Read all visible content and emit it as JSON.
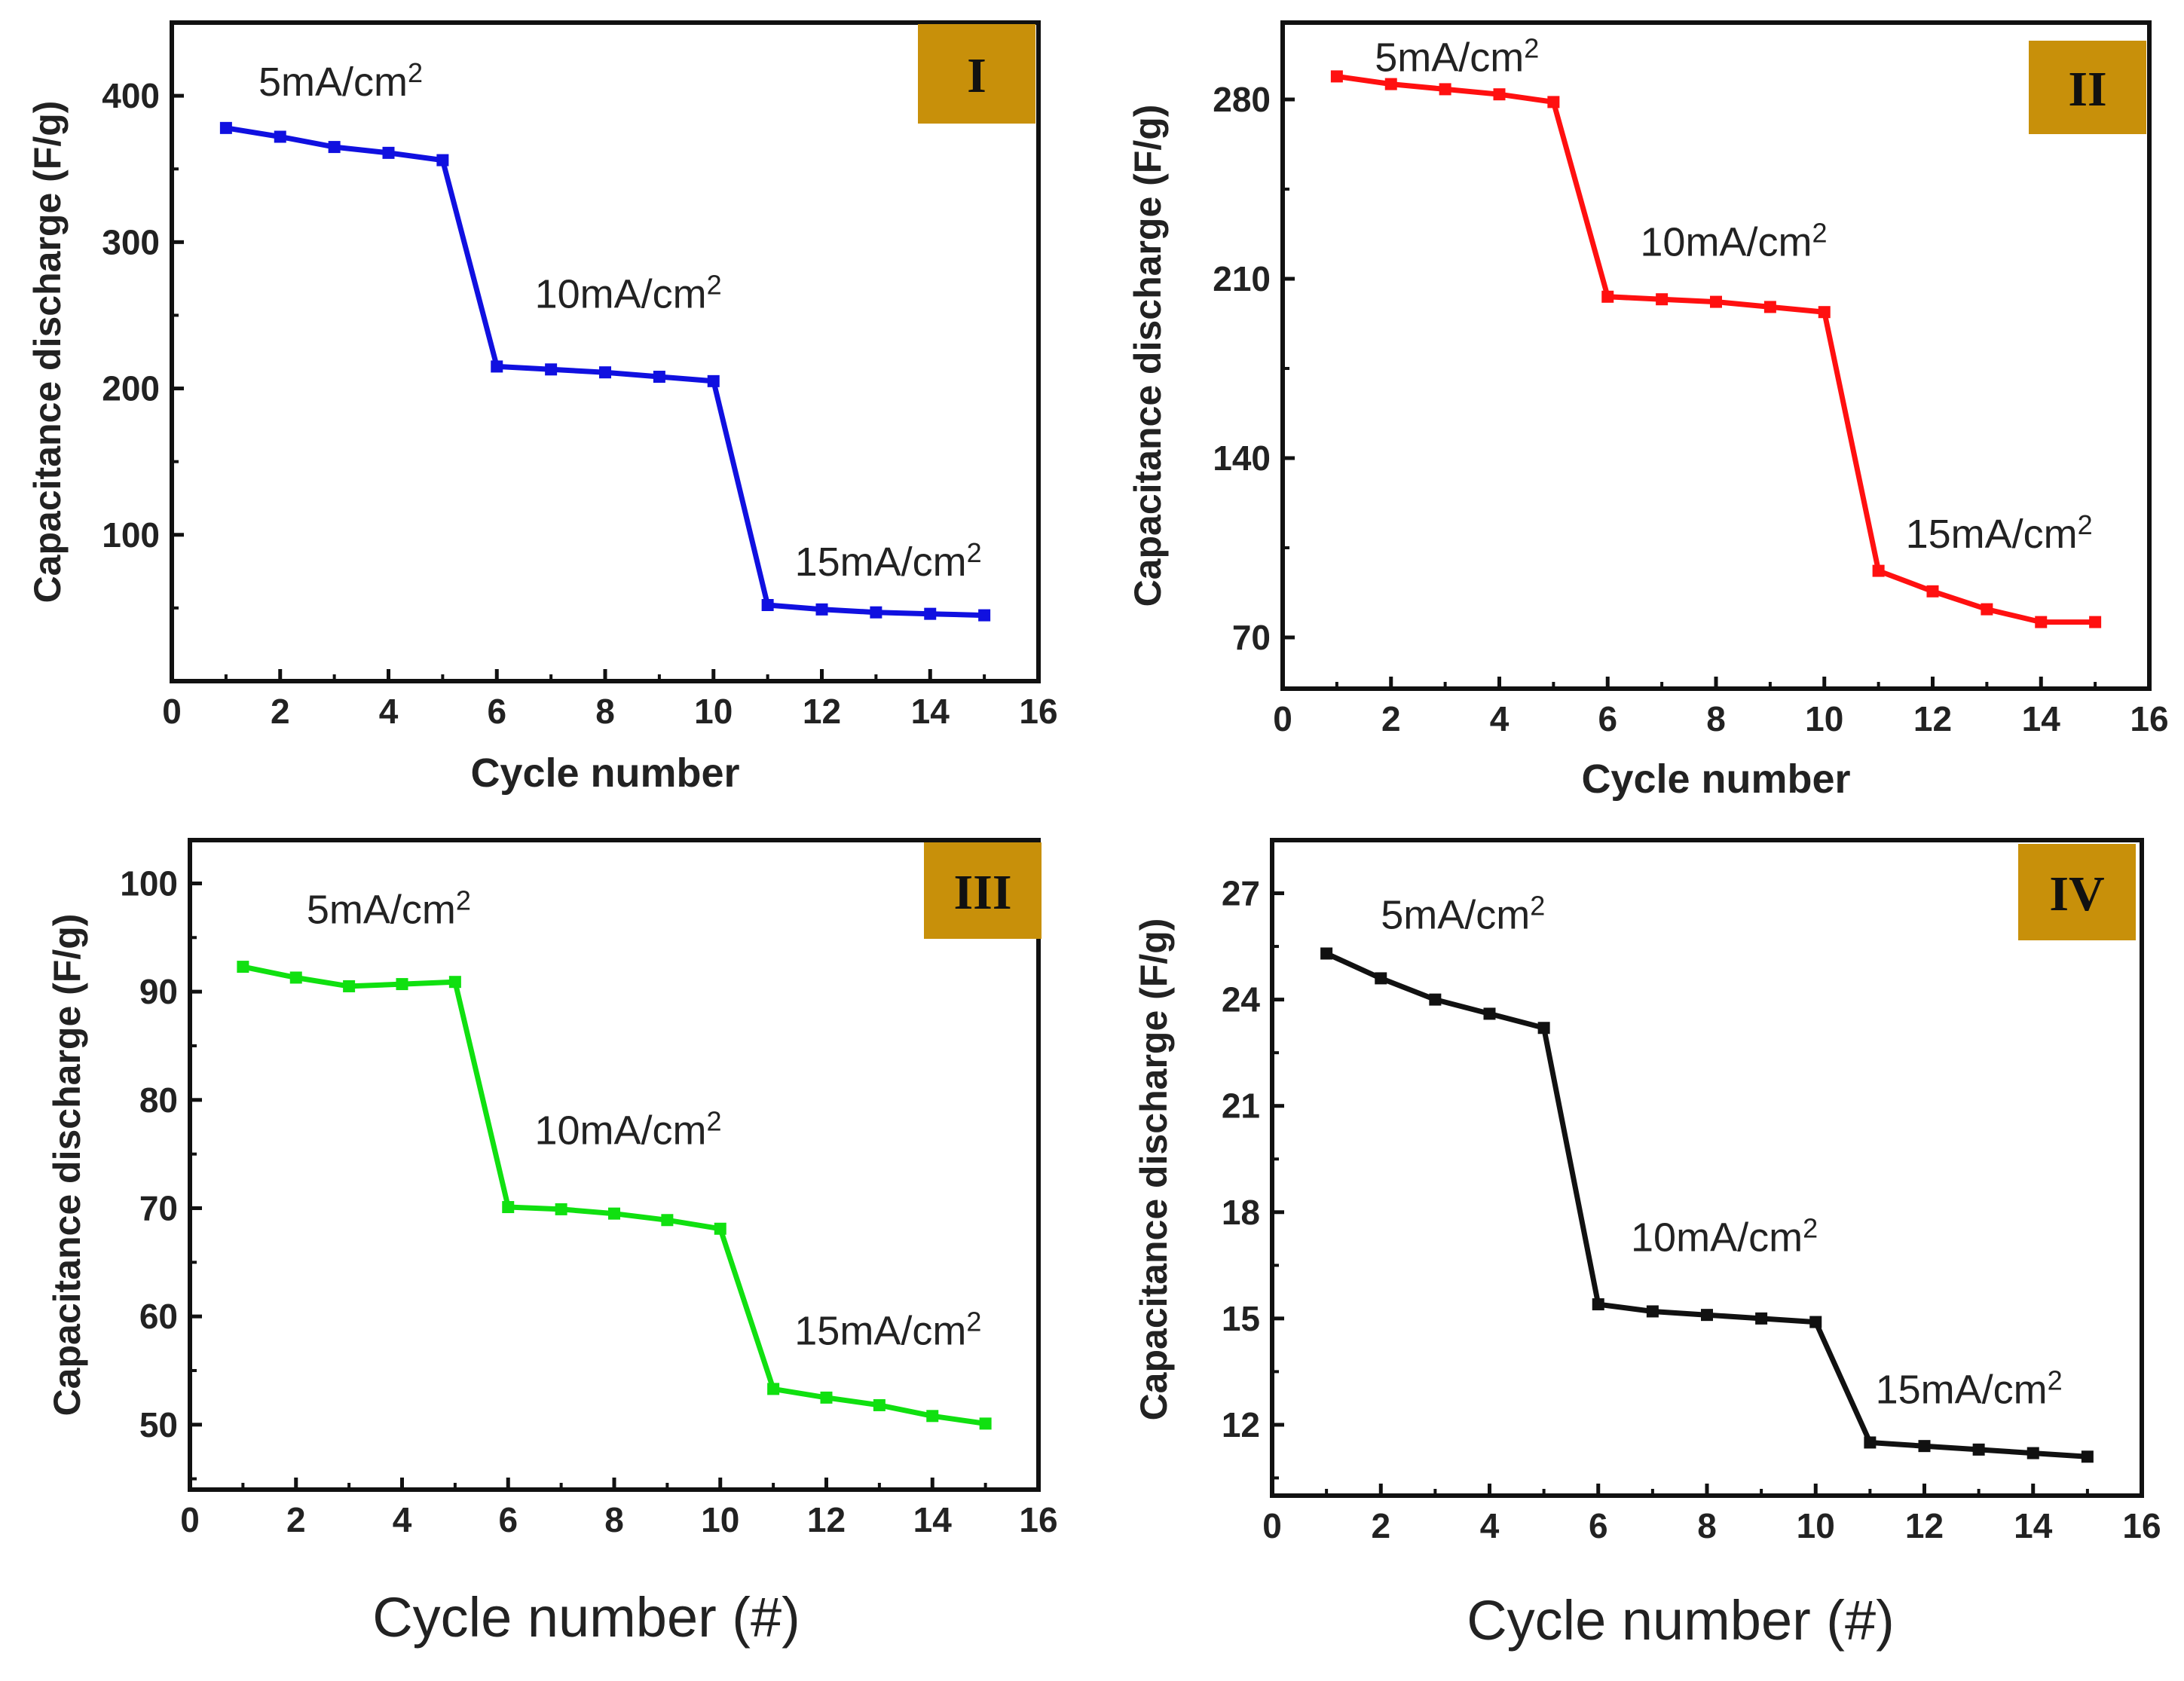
{
  "badge_color": "#C8900A",
  "chart_data": [
    {
      "type": "line",
      "panel": "I",
      "color": "#1010E0",
      "x": [
        1,
        2,
        3,
        4,
        5,
        6,
        7,
        8,
        9,
        10,
        11,
        12,
        13,
        14,
        15
      ],
      "values": [
        378,
        372,
        365,
        361,
        356,
        215,
        213,
        211,
        208,
        205,
        52,
        49,
        47,
        46,
        45
      ],
      "xlim": [
        0,
        16
      ],
      "ylim": [
        0,
        450
      ],
      "xticks": [
        0,
        2,
        4,
        6,
        8,
        10,
        12,
        14,
        16
      ],
      "yticks": [
        100,
        200,
        300,
        400
      ],
      "xlabel": "Cycle number",
      "ylabel": "Capacitance discharge (F/g)",
      "annotations": [
        {
          "text": "5mA/cm",
          "sup": "2",
          "x": 1.6,
          "y": 400
        },
        {
          "text": "10mA/cm",
          "sup": "2",
          "x": 6.7,
          "y": 255
        },
        {
          "text": "15mA/cm",
          "sup": "2",
          "x": 11.5,
          "y": 72
        }
      ]
    },
    {
      "type": "line",
      "panel": "II",
      "color": "#FF1010",
      "x": [
        1,
        2,
        3,
        4,
        5,
        6,
        7,
        8,
        9,
        10,
        11,
        12,
        13,
        14,
        15
      ],
      "values": [
        289,
        286,
        284,
        282,
        279,
        203,
        202,
        201,
        199,
        197,
        96,
        88,
        81,
        76,
        76
      ],
      "xlim": [
        0,
        16
      ],
      "ylim": [
        50,
        310
      ],
      "xticks": [
        0,
        2,
        4,
        6,
        8,
        10,
        12,
        14,
        16
      ],
      "yticks": [
        70,
        140,
        210,
        280
      ],
      "xlabel": "Cycle number",
      "ylabel": "Capacitance discharge (F/g)",
      "annotations": [
        {
          "text": "5mA/cm",
          "sup": "2",
          "x": 1.7,
          "y": 291
        },
        {
          "text": "10mA/cm",
          "sup": "2",
          "x": 6.6,
          "y": 219
        },
        {
          "text": "15mA/cm",
          "sup": "2",
          "x": 11.5,
          "y": 105
        }
      ]
    },
    {
      "type": "line",
      "panel": "III",
      "color": "#10E010",
      "x": [
        1,
        2,
        3,
        4,
        5,
        6,
        7,
        8,
        9,
        10,
        11,
        12,
        13,
        14,
        15
      ],
      "values": [
        92.3,
        91.3,
        90.5,
        90.7,
        90.9,
        70.1,
        69.9,
        69.5,
        68.9,
        68.1,
        53.3,
        52.5,
        51.8,
        50.8,
        50.1
      ],
      "xlim": [
        0,
        16
      ],
      "ylim": [
        44,
        104
      ],
      "xticks": [
        0,
        2,
        4,
        6,
        8,
        10,
        12,
        14,
        16
      ],
      "yticks": [
        50,
        60,
        70,
        80,
        90,
        100
      ],
      "xlabel": "Cycle number (#)",
      "ylabel": "Capacitance discharge (F/g)",
      "annotations": [
        {
          "text": "5mA/cm",
          "sup": "2",
          "x": 2.2,
          "y": 96.3
        },
        {
          "text": "10mA/cm",
          "sup": "2",
          "x": 6.5,
          "y": 75.9
        },
        {
          "text": "15mA/cm",
          "sup": "2",
          "x": 11.4,
          "y": 57.4
        }
      ]
    },
    {
      "type": "line",
      "panel": "IV",
      "color": "#111111",
      "x": [
        1,
        2,
        3,
        4,
        5,
        6,
        7,
        8,
        9,
        10,
        11,
        12,
        13,
        14,
        15
      ],
      "values": [
        25.3,
        24.6,
        24.0,
        23.6,
        23.2,
        15.4,
        15.2,
        15.1,
        15.0,
        14.9,
        11.5,
        11.4,
        11.3,
        11.2,
        11.1
      ],
      "xlim": [
        0,
        16
      ],
      "ylim": [
        10,
        28.5
      ],
      "xticks": [
        0,
        2,
        4,
        6,
        8,
        10,
        12,
        14,
        16
      ],
      "yticks": [
        12,
        15,
        18,
        21,
        24,
        27
      ],
      "xlabel": "Cycle number (#)",
      "ylabel": "Capacitance discharge (F/g)",
      "annotations": [
        {
          "text": "5mA/cm",
          "sup": "2",
          "x": 2.0,
          "y": 26.0
        },
        {
          "text": "10mA/cm",
          "sup": "2",
          "x": 6.6,
          "y": 16.9
        },
        {
          "text": "15mA/cm",
          "sup": "2",
          "x": 11.1,
          "y": 12.6
        }
      ]
    }
  ]
}
